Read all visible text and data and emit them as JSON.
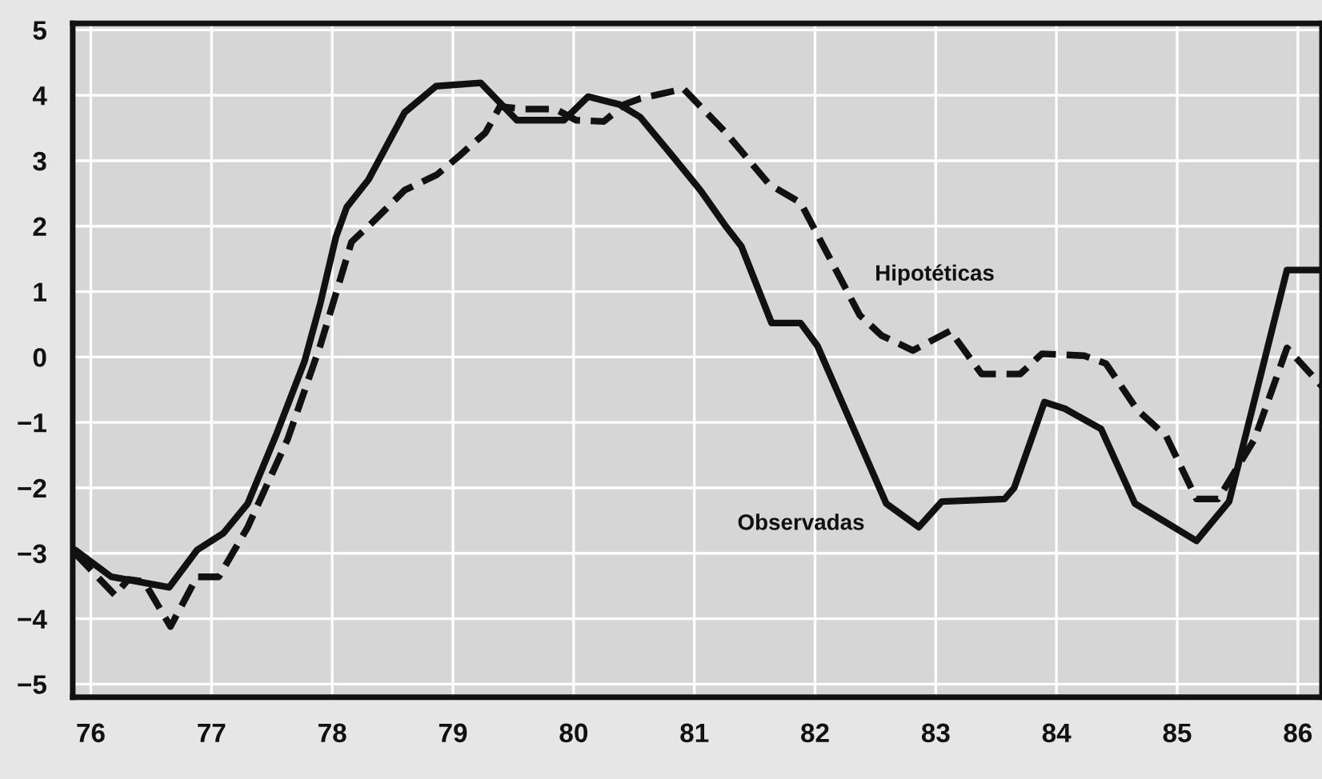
{
  "chart_data": {
    "type": "line",
    "series": [
      {
        "name": "Observadas",
        "color": "#111111",
        "line_style": "solid",
        "x": [
          75.87,
          76.17,
          76.65,
          76.88,
          77.1,
          77.3,
          77.54,
          77.77,
          77.9,
          78.03,
          78.12,
          78.3,
          78.6,
          78.86,
          79.23,
          79.53,
          79.92,
          80.12,
          80.38,
          80.55,
          80.82,
          81.05,
          81.26,
          81.39,
          81.64,
          81.88,
          82.02,
          82.59,
          82.86,
          83.05,
          83.57,
          83.65,
          83.9,
          84.07,
          84.37,
          84.65,
          85.16,
          85.43,
          85.91,
          86.2
        ],
        "values": [
          -2.95,
          -3.36,
          -3.52,
          -2.95,
          -2.69,
          -2.24,
          -1.17,
          -0.07,
          0.81,
          1.83,
          2.29,
          2.71,
          3.74,
          4.14,
          4.19,
          3.62,
          3.62,
          3.98,
          3.86,
          3.67,
          3.07,
          2.55,
          2.0,
          1.69,
          0.52,
          0.52,
          0.17,
          -2.24,
          -2.6,
          -2.21,
          -2.17,
          -2.0,
          -0.69,
          -0.79,
          -1.1,
          -2.24,
          -2.81,
          -2.21,
          1.33,
          1.33
        ]
      },
      {
        "name": "Hipotéticas",
        "color": "#111111",
        "line_style": "dashed",
        "x": [
          75.87,
          76.2,
          76.31,
          76.44,
          76.66,
          76.88,
          77.06,
          77.3,
          77.63,
          77.9,
          78.16,
          78.34,
          78.6,
          78.87,
          79.05,
          79.27,
          79.39,
          79.59,
          79.85,
          80.02,
          80.25,
          80.42,
          80.55,
          80.91,
          81.26,
          81.62,
          81.88,
          82.37,
          82.55,
          82.81,
          83.12,
          83.38,
          83.7,
          83.88,
          84.23,
          84.41,
          84.67,
          84.91,
          85.16,
          85.34,
          85.64,
          85.91,
          86.2
        ],
        "values": [
          -3.0,
          -3.64,
          -3.4,
          -3.43,
          -4.12,
          -3.36,
          -3.36,
          -2.6,
          -1.26,
          0.17,
          1.76,
          2.07,
          2.55,
          2.79,
          3.07,
          3.43,
          3.83,
          3.79,
          3.79,
          3.62,
          3.6,
          3.86,
          3.95,
          4.1,
          3.43,
          2.64,
          2.36,
          0.64,
          0.33,
          0.1,
          0.4,
          -0.26,
          -0.26,
          0.05,
          0.02,
          -0.1,
          -0.81,
          -1.21,
          -2.17,
          -2.17,
          -1.26,
          0.14,
          -0.45
        ]
      }
    ],
    "xlim": [
      75.85,
      86.2
    ],
    "xticks": [
      76,
      77,
      78,
      79,
      80,
      81,
      82,
      83,
      84,
      85,
      86
    ],
    "ylim": [
      -5.2,
      5.1
    ],
    "yticks": [
      {
        "value": -5,
        "label": "−5"
      },
      {
        "value": -4,
        "label": "−4"
      },
      {
        "value": -3,
        "label": "−3"
      },
      {
        "value": -2,
        "label": "−2"
      },
      {
        "value": -1,
        "label": "−1"
      },
      0,
      1,
      2,
      3,
      4,
      5
    ],
    "grid": true,
    "legend": false
  }
}
